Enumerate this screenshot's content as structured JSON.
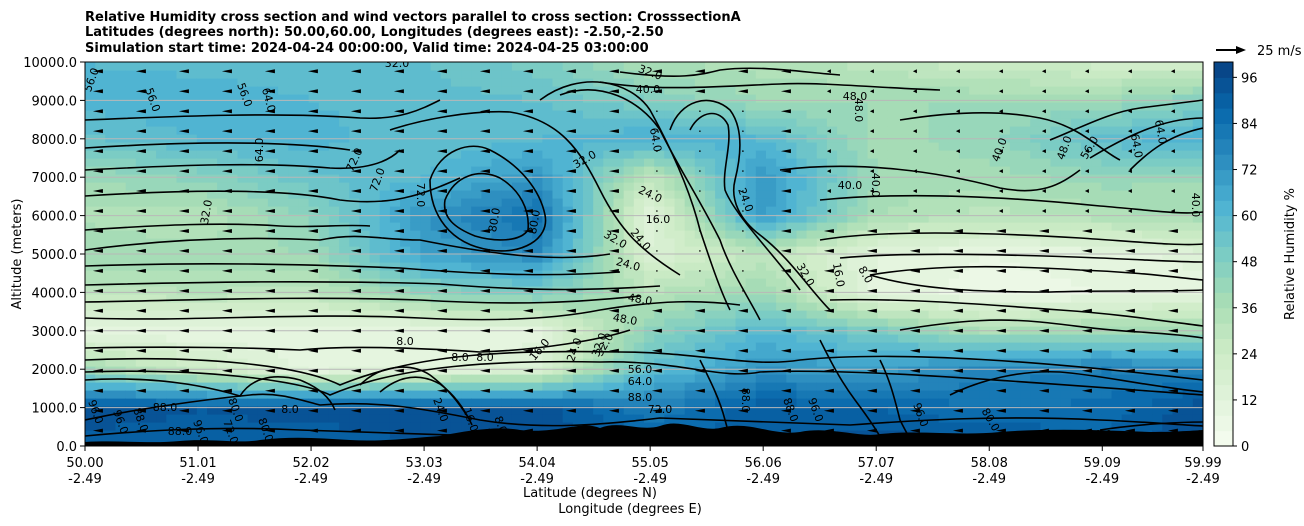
{
  "chart_data": {
    "type": "heatmap",
    "title_lines": [
      "Relative Humidity cross section and wind vectors parallel to cross section: CrosssectionA",
      "Latitudes (degrees north): 50.00,60.00, Longitudes (degrees east): -2.50,-2.50",
      "Simulation start time: 2024-04-24 00:00:00, Valid time: 2024-04-25 03:00:00"
    ],
    "xlabel_lines": [
      "Latitude (degrees N)",
      "Longitude (degrees E)"
    ],
    "ylabel": "Altitude (meters)",
    "x_ticks": [
      {
        "lat": "50.00",
        "lon": "-2.49"
      },
      {
        "lat": "51.01",
        "lon": "-2.49"
      },
      {
        "lat": "52.02",
        "lon": "-2.49"
      },
      {
        "lat": "53.03",
        "lon": "-2.49"
      },
      {
        "lat": "54.04",
        "lon": "-2.49"
      },
      {
        "lat": "55.05",
        "lon": "-2.49"
      },
      {
        "lat": "56.06",
        "lon": "-2.49"
      },
      {
        "lat": "57.07",
        "lon": "-2.49"
      },
      {
        "lat": "58.08",
        "lon": "-2.49"
      },
      {
        "lat": "59.09",
        "lon": "-2.49"
      },
      {
        "lat": "59.99",
        "lon": "-2.49"
      }
    ],
    "y_ticks": [
      "0.0",
      "1000.0",
      "2000.0",
      "3000.0",
      "4000.0",
      "5000.0",
      "6000.0",
      "7000.0",
      "8000.0",
      "9000.0",
      "10000.0"
    ],
    "xlim": [
      50.0,
      59.99
    ],
    "ylim": [
      0,
      10000
    ],
    "grid": "horizontal",
    "colorbar": {
      "label": "Relative Humidity %",
      "ticks": [
        "0",
        "12",
        "24",
        "36",
        "48",
        "60",
        "72",
        "84",
        "96"
      ],
      "range": [
        0,
        100
      ],
      "colormap": "GnBu",
      "colors": [
        "#f7fcf0",
        "#e0f3db",
        "#ccebc5",
        "#a8ddb5",
        "#7bccc4",
        "#4eb3d3",
        "#2b8cbe",
        "#0868ac",
        "#084081"
      ]
    },
    "wind_key": {
      "label": "25 m/s",
      "speed": 25
    },
    "contour_labels": [
      "56.0",
      "56.0",
      "56.0",
      "64.0",
      "64.0",
      "72.0",
      "72.0",
      "72.0",
      "32.0",
      "80.0",
      "80.0",
      "8.0",
      "32.0",
      "40.0",
      "32.0",
      "48.0",
      "64.0",
      "24.0",
      "32.0",
      "16.0",
      "24.0",
      "24.0",
      "32.0",
      "48.0",
      "48.0",
      "32.0",
      "8.0",
      "8.0",
      "8.0",
      "16.0",
      "24.0",
      "32.0",
      "56.0",
      "64.0",
      "88.0",
      "72.0",
      "24.0",
      "32.0",
      "16.0",
      "8.0",
      "40.0",
      "40.0",
      "48.0",
      "40.0",
      "48.0",
      "56.0",
      "64.0",
      "64.0",
      "40.0",
      "88.0",
      "88.0",
      "96.0",
      "96.0",
      "80.0",
      "80.0",
      "80.0",
      "96.0",
      "96.0",
      "88.0",
      "88.0",
      "88.0",
      "96.0",
      "72.0",
      "80.0",
      "80.0",
      "24.0",
      "16.0",
      "8.0"
    ],
    "series": [
      {
        "fields": [
          "lat",
          "alt_m",
          "rh_pct"
        ],
        "values": [
          [
            50.0,
            100,
            90
          ],
          [
            50.0,
            1000,
            95
          ],
          [
            50.0,
            2000,
            40
          ],
          [
            50.0,
            3000,
            8
          ],
          [
            50.0,
            4000,
            30
          ],
          [
            50.0,
            5000,
            40
          ],
          [
            50.0,
            6000,
            35
          ],
          [
            50.0,
            7000,
            40
          ],
          [
            50.0,
            8000,
            55
          ],
          [
            50.0,
            9000,
            62
          ],
          [
            50.0,
            10000,
            60
          ],
          [
            51.01,
            100,
            90
          ],
          [
            51.01,
            1000,
            92
          ],
          [
            51.01,
            2000,
            25
          ],
          [
            51.01,
            3000,
            8
          ],
          [
            51.01,
            4000,
            32
          ],
          [
            51.01,
            5000,
            38
          ],
          [
            51.01,
            6000,
            32
          ],
          [
            51.01,
            7000,
            45
          ],
          [
            51.01,
            8000,
            60
          ],
          [
            51.01,
            9000,
            64
          ],
          [
            51.01,
            10000,
            58
          ],
          [
            52.02,
            100,
            88
          ],
          [
            52.02,
            1000,
            95
          ],
          [
            52.02,
            2000,
            10
          ],
          [
            52.02,
            3000,
            8
          ],
          [
            52.02,
            4000,
            30
          ],
          [
            52.02,
            5000,
            40
          ],
          [
            52.02,
            6000,
            45
          ],
          [
            52.02,
            7000,
            55
          ],
          [
            52.02,
            8000,
            62
          ],
          [
            52.02,
            9000,
            60
          ],
          [
            52.02,
            10000,
            56
          ],
          [
            53.03,
            100,
            92
          ],
          [
            53.03,
            1000,
            96
          ],
          [
            53.03,
            2000,
            12
          ],
          [
            53.03,
            3000,
            8
          ],
          [
            53.03,
            4000,
            45
          ],
          [
            53.03,
            5000,
            68
          ],
          [
            53.03,
            6000,
            72
          ],
          [
            53.03,
            7000,
            60
          ],
          [
            53.03,
            8000,
            56
          ],
          [
            53.03,
            9000,
            58
          ],
          [
            53.03,
            10000,
            56
          ],
          [
            54.04,
            100,
            96
          ],
          [
            54.04,
            1000,
            95
          ],
          [
            54.04,
            2000,
            16
          ],
          [
            54.04,
            3000,
            10
          ],
          [
            54.04,
            4000,
            50
          ],
          [
            54.04,
            5000,
            76
          ],
          [
            54.04,
            6000,
            85
          ],
          [
            54.04,
            7000,
            72
          ],
          [
            54.04,
            8000,
            60
          ],
          [
            54.04,
            9000,
            56
          ],
          [
            54.04,
            10000,
            50
          ],
          [
            55.05,
            100,
            90
          ],
          [
            55.05,
            1000,
            80
          ],
          [
            55.05,
            2000,
            58
          ],
          [
            55.05,
            3000,
            45
          ],
          [
            55.05,
            4000,
            32
          ],
          [
            55.05,
            5000,
            16
          ],
          [
            55.05,
            6000,
            12
          ],
          [
            55.05,
            7000,
            28
          ],
          [
            55.05,
            8000,
            64
          ],
          [
            55.05,
            9000,
            48
          ],
          [
            55.05,
            10000,
            36
          ],
          [
            56.06,
            100,
            88
          ],
          [
            56.06,
            1000,
            92
          ],
          [
            56.06,
            2000,
            72
          ],
          [
            56.06,
            3000,
            60
          ],
          [
            56.06,
            4000,
            40
          ],
          [
            56.06,
            5000,
            30
          ],
          [
            56.06,
            6000,
            70
          ],
          [
            56.06,
            7000,
            72
          ],
          [
            56.06,
            8000,
            60
          ],
          [
            56.06,
            9000,
            40
          ],
          [
            56.06,
            10000,
            34
          ],
          [
            57.07,
            100,
            95
          ],
          [
            57.07,
            1000,
            88
          ],
          [
            57.07,
            2000,
            70
          ],
          [
            57.07,
            3000,
            50
          ],
          [
            57.07,
            4000,
            10
          ],
          [
            57.07,
            5000,
            12
          ],
          [
            57.07,
            6000,
            36
          ],
          [
            57.07,
            7000,
            40
          ],
          [
            57.07,
            8000,
            38
          ],
          [
            57.07,
            9000,
            40
          ],
          [
            57.07,
            10000,
            30
          ],
          [
            58.08,
            100,
            92
          ],
          [
            58.08,
            1000,
            84
          ],
          [
            58.08,
            2000,
            78
          ],
          [
            58.08,
            3000,
            36
          ],
          [
            58.08,
            4000,
            6
          ],
          [
            58.08,
            5000,
            8
          ],
          [
            58.08,
            6000,
            30
          ],
          [
            58.08,
            7000,
            38
          ],
          [
            58.08,
            8000,
            42
          ],
          [
            58.08,
            9000,
            40
          ],
          [
            58.08,
            10000,
            24
          ],
          [
            59.09,
            100,
            90
          ],
          [
            59.09,
            1000,
            85
          ],
          [
            59.09,
            2000,
            80
          ],
          [
            59.09,
            3000,
            40
          ],
          [
            59.09,
            4000,
            8
          ],
          [
            59.09,
            5000,
            10
          ],
          [
            59.09,
            6000,
            34
          ],
          [
            59.09,
            7000,
            42
          ],
          [
            59.09,
            8000,
            58
          ],
          [
            59.09,
            9000,
            40
          ],
          [
            59.09,
            10000,
            22
          ],
          [
            59.99,
            100,
            96
          ],
          [
            59.99,
            1000,
            95
          ],
          [
            59.99,
            2000,
            78
          ],
          [
            59.99,
            3000,
            40
          ],
          [
            59.99,
            4000,
            10
          ],
          [
            59.99,
            5000,
            14
          ],
          [
            59.99,
            6000,
            38
          ],
          [
            59.99,
            7000,
            40
          ],
          [
            59.99,
            8000,
            64
          ],
          [
            59.99,
            9000,
            48
          ],
          [
            59.99,
            10000,
            20
          ]
        ]
      }
    ]
  }
}
